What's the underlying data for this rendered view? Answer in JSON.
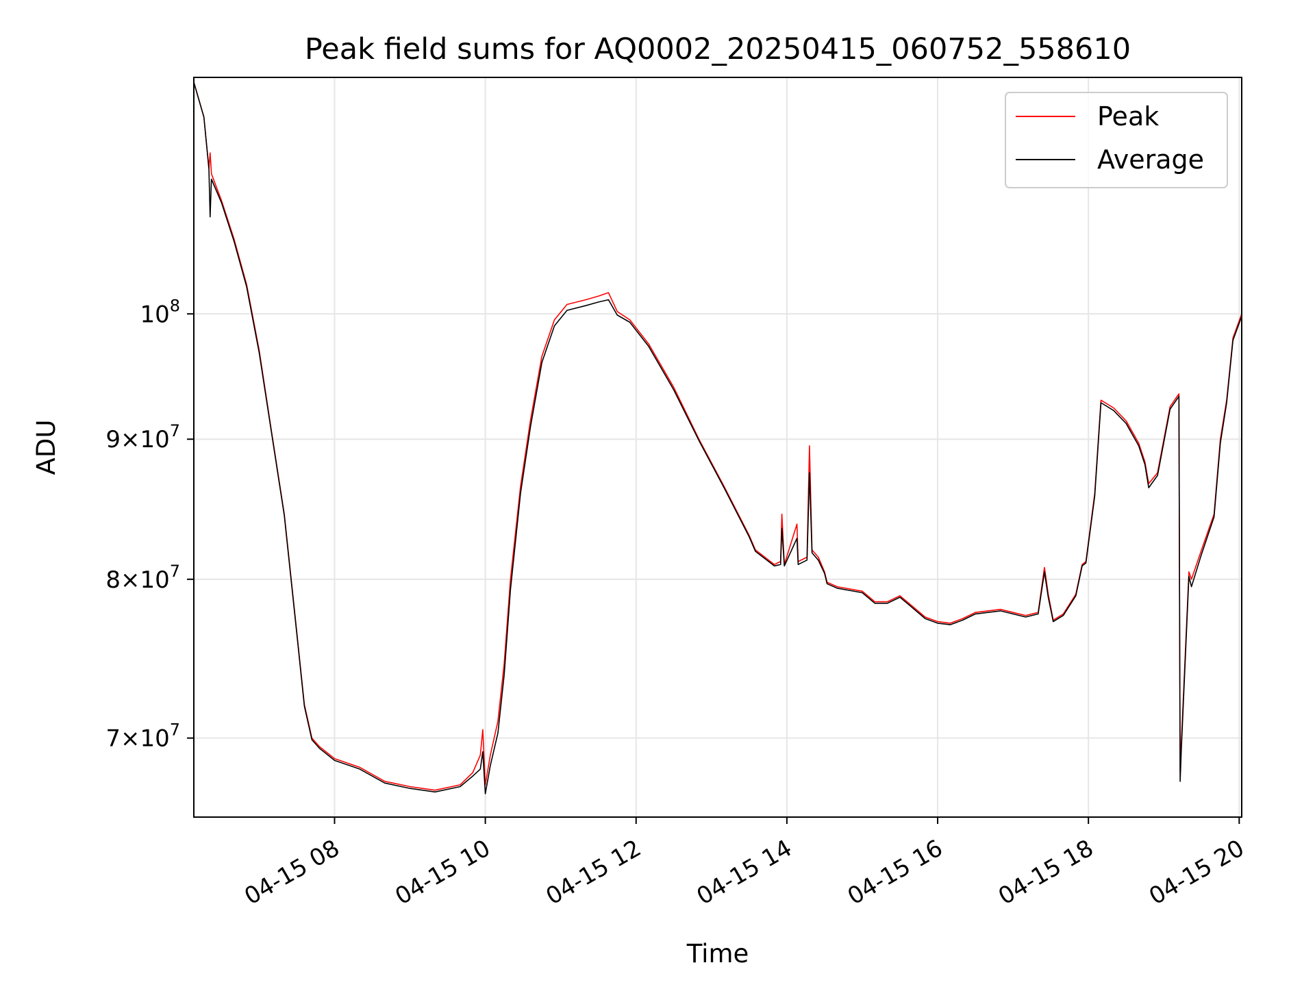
{
  "chart_data": {
    "type": "line",
    "title": "Peak field sums for AQ0002_20250415_060752_558610",
    "xlabel": "Time",
    "ylabel": "ADU",
    "x_scale": "time",
    "y_scale": "log",
    "xlim": [
      "2025-04-15 06:08",
      "2025-04-15 20:02"
    ],
    "ylim": [
      65500000,
      122000000
    ],
    "grid": true,
    "legend_position": "top-right",
    "x_ticks": [
      "04-15 08",
      "04-15 10",
      "04-15 12",
      "04-15 14",
      "04-15 16",
      "04-15 18",
      "04-15 20"
    ],
    "y_ticks": [
      {
        "value": 70000000,
        "mantissa": "7",
        "base": "10",
        "exp": "7"
      },
      {
        "value": 80000000,
        "mantissa": "8",
        "base": "10",
        "exp": "7"
      },
      {
        "value": 90000000,
        "mantissa": "9",
        "base": "10",
        "exp": "7"
      },
      {
        "value": 100000000,
        "mantissa": "",
        "base": "10",
        "exp": "8"
      }
    ],
    "series": [
      {
        "name": "Peak",
        "color": "#ff0000",
        "x": [
          "2025-04-15 06:08",
          "2025-04-15 06:16",
          "2025-04-15 06:20",
          "2025-04-15 06:21",
          "2025-04-15 06:22",
          "2025-04-15 06:30",
          "2025-04-15 06:40",
          "2025-04-15 06:50",
          "2025-04-15 07:00",
          "2025-04-15 07:10",
          "2025-04-15 07:20",
          "2025-04-15 07:30",
          "2025-04-15 07:36",
          "2025-04-15 07:42",
          "2025-04-15 07:48",
          "2025-04-15 08:00",
          "2025-04-15 08:20",
          "2025-04-15 08:40",
          "2025-04-15 09:00",
          "2025-04-15 09:20",
          "2025-04-15 09:40",
          "2025-04-15 09:50",
          "2025-04-15 09:56",
          "2025-04-15 09:58",
          "2025-04-15 10:00",
          "2025-04-15 10:04",
          "2025-04-15 10:10",
          "2025-04-15 10:15",
          "2025-04-15 10:20",
          "2025-04-15 10:28",
          "2025-04-15 10:36",
          "2025-04-15 10:45",
          "2025-04-15 10:55",
          "2025-04-15 11:05",
          "2025-04-15 11:20",
          "2025-04-15 11:30",
          "2025-04-15 11:38",
          "2025-04-15 11:45",
          "2025-04-15 11:55",
          "2025-04-15 12:10",
          "2025-04-15 12:30",
          "2025-04-15 12:50",
          "2025-04-15 13:10",
          "2025-04-15 13:30",
          "2025-04-15 13:35",
          "2025-04-15 13:50",
          "2025-04-15 13:55",
          "2025-04-15 13:56",
          "2025-04-15 13:58",
          "2025-04-15 14:08",
          "2025-04-15 14:09",
          "2025-04-15 14:16",
          "2025-04-15 14:18",
          "2025-04-15 14:20",
          "2025-04-15 14:25",
          "2025-04-15 14:30",
          "2025-04-15 14:32",
          "2025-04-15 14:40",
          "2025-04-15 15:00",
          "2025-04-15 15:10",
          "2025-04-15 15:20",
          "2025-04-15 15:30",
          "2025-04-15 15:40",
          "2025-04-15 15:50",
          "2025-04-15 16:00",
          "2025-04-15 16:10",
          "2025-04-15 16:20",
          "2025-04-15 16:30",
          "2025-04-15 16:40",
          "2025-04-15 16:50",
          "2025-04-15 17:00",
          "2025-04-15 17:10",
          "2025-04-15 17:20",
          "2025-04-15 17:25",
          "2025-04-15 17:28",
          "2025-04-15 17:32",
          "2025-04-15 17:40",
          "2025-04-15 17:50",
          "2025-04-15 17:55",
          "2025-04-15 17:58",
          "2025-04-15 18:05",
          "2025-04-15 18:10",
          "2025-04-15 18:20",
          "2025-04-15 18:30",
          "2025-04-15 18:40",
          "2025-04-15 18:45",
          "2025-04-15 18:48",
          "2025-04-15 18:55",
          "2025-04-15 19:05",
          "2025-04-15 19:12",
          "2025-04-15 19:13",
          "2025-04-15 19:14",
          "2025-04-15 19:20",
          "2025-04-15 19:22",
          "2025-04-15 19:30",
          "2025-04-15 19:40",
          "2025-04-15 19:45",
          "2025-04-15 19:50",
          "2025-04-15 19:55",
          "2025-04-15 20:02"
        ],
        "values": [
          121500000,
          118000000,
          113000000,
          114500000,
          112500000,
          110000000,
          106500000,
          102500000,
          97000000,
          90500000,
          84500000,
          76500000,
          72000000,
          70000000,
          69500000,
          68800000,
          68300000,
          67500000,
          67200000,
          67000000,
          67300000,
          68000000,
          69000000,
          70500000,
          67300000,
          69000000,
          71000000,
          74500000,
          80000000,
          86500000,
          91500000,
          96500000,
          99500000,
          100800000,
          101200000,
          101500000,
          101800000,
          100200000,
          99500000,
          97500000,
          94000000,
          90000000,
          86500000,
          83000000,
          82000000,
          81000000,
          81200000,
          84500000,
          81000000,
          83800000,
          81200000,
          81500000,
          89500000,
          82000000,
          81500000,
          80500000,
          79800000,
          79500000,
          79200000,
          78500000,
          78500000,
          78900000,
          78200000,
          77500000,
          77200000,
          77100000,
          77400000,
          77800000,
          77900000,
          78000000,
          77800000,
          77600000,
          77800000,
          80800000,
          79000000,
          77300000,
          77700000,
          79000000,
          81000000,
          81200000,
          86000000,
          93000000,
          92400000,
          91400000,
          89700000,
          88300000,
          86700000,
          87500000,
          92500000,
          93500000,
          68000000,
          69800000,
          80500000,
          80000000,
          82000000,
          84500000,
          90000000,
          93000000,
          98000000,
          100000000
        ]
      },
      {
        "name": "Average",
        "color": "#000000",
        "x": [
          "2025-04-15 06:08",
          "2025-04-15 06:16",
          "2025-04-15 06:20",
          "2025-04-15 06:21",
          "2025-04-15 06:22",
          "2025-04-15 06:30",
          "2025-04-15 06:40",
          "2025-04-15 06:50",
          "2025-04-15 07:00",
          "2025-04-15 07:10",
          "2025-04-15 07:20",
          "2025-04-15 07:30",
          "2025-04-15 07:36",
          "2025-04-15 07:42",
          "2025-04-15 07:48",
          "2025-04-15 08:00",
          "2025-04-15 08:20",
          "2025-04-15 08:40",
          "2025-04-15 09:00",
          "2025-04-15 09:20",
          "2025-04-15 09:40",
          "2025-04-15 09:50",
          "2025-04-15 09:56",
          "2025-04-15 09:58",
          "2025-04-15 10:00",
          "2025-04-15 10:04",
          "2025-04-15 10:10",
          "2025-04-15 10:15",
          "2025-04-15 10:20",
          "2025-04-15 10:28",
          "2025-04-15 10:36",
          "2025-04-15 10:45",
          "2025-04-15 10:55",
          "2025-04-15 11:05",
          "2025-04-15 11:20",
          "2025-04-15 11:30",
          "2025-04-15 11:38",
          "2025-04-15 11:45",
          "2025-04-15 11:55",
          "2025-04-15 12:10",
          "2025-04-15 12:30",
          "2025-04-15 12:50",
          "2025-04-15 13:10",
          "2025-04-15 13:30",
          "2025-04-15 13:35",
          "2025-04-15 13:50",
          "2025-04-15 13:55",
          "2025-04-15 13:56",
          "2025-04-15 13:58",
          "2025-04-15 14:08",
          "2025-04-15 14:09",
          "2025-04-15 14:16",
          "2025-04-15 14:18",
          "2025-04-15 14:20",
          "2025-04-15 14:25",
          "2025-04-15 14:30",
          "2025-04-15 14:32",
          "2025-04-15 14:40",
          "2025-04-15 15:00",
          "2025-04-15 15:10",
          "2025-04-15 15:20",
          "2025-04-15 15:30",
          "2025-04-15 15:40",
          "2025-04-15 15:50",
          "2025-04-15 16:00",
          "2025-04-15 16:10",
          "2025-04-15 16:20",
          "2025-04-15 16:30",
          "2025-04-15 16:40",
          "2025-04-15 16:50",
          "2025-04-15 17:00",
          "2025-04-15 17:10",
          "2025-04-15 17:20",
          "2025-04-15 17:25",
          "2025-04-15 17:28",
          "2025-04-15 17:32",
          "2025-04-15 17:40",
          "2025-04-15 17:50",
          "2025-04-15 17:55",
          "2025-04-15 17:58",
          "2025-04-15 18:05",
          "2025-04-15 18:10",
          "2025-04-15 18:20",
          "2025-04-15 18:30",
          "2025-04-15 18:40",
          "2025-04-15 18:45",
          "2025-04-15 18:48",
          "2025-04-15 18:55",
          "2025-04-15 19:05",
          "2025-04-15 19:12",
          "2025-04-15 19:13",
          "2025-04-15 19:14",
          "2025-04-15 19:20",
          "2025-04-15 19:22",
          "2025-04-15 19:30",
          "2025-04-15 19:40",
          "2025-04-15 19:45",
          "2025-04-15 19:50",
          "2025-04-15 19:55",
          "2025-04-15 20:02"
        ],
        "values": [
          121500000,
          118000000,
          113000000,
          108500000,
          112000000,
          109800000,
          106300000,
          102300000,
          96800000,
          90400000,
          84400000,
          76400000,
          71900000,
          69900000,
          69400000,
          68700000,
          68200000,
          67400000,
          67100000,
          66900000,
          67200000,
          67800000,
          68200000,
          69200000,
          66800000,
          68400000,
          70300000,
          73800000,
          79300000,
          86000000,
          91000000,
          96000000,
          99000000,
          100300000,
          100700000,
          101000000,
          101200000,
          99900000,
          99300000,
          97300000,
          93800000,
          89900000,
          86400000,
          82900000,
          81900000,
          80900000,
          81000000,
          83500000,
          80900000,
          82800000,
          81000000,
          81300000,
          87500000,
          81800000,
          81300000,
          80400000,
          79700000,
          79400000,
          79100000,
          78400000,
          78400000,
          78800000,
          78100000,
          77400000,
          77100000,
          77000000,
          77300000,
          77700000,
          77800000,
          77900000,
          77700000,
          77500000,
          77700000,
          80500000,
          78800000,
          77200000,
          77600000,
          78900000,
          80900000,
          81100000,
          85800000,
          92800000,
          92200000,
          91200000,
          89500000,
          88100000,
          86400000,
          87300000,
          92300000,
          93300000,
          67500000,
          69400000,
          80200000,
          79500000,
          81700000,
          84300000,
          89700000,
          92800000,
          97800000,
          99800000
        ]
      }
    ]
  }
}
